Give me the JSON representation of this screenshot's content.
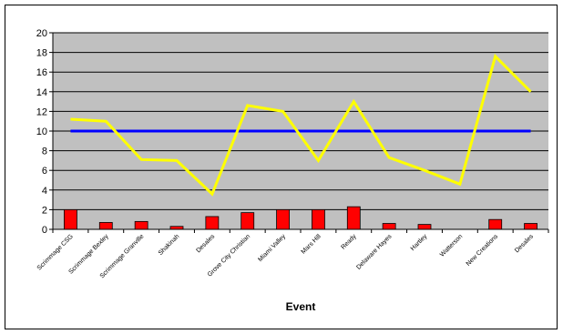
{
  "chart_data": {
    "type": "bar",
    "title": "",
    "xlabel": "Event",
    "ylabel": "",
    "ylim": [
      0,
      20
    ],
    "yticks": [
      0,
      2,
      4,
      6,
      8,
      10,
      12,
      14,
      16,
      18,
      20
    ],
    "grid": true,
    "legend": "none",
    "plot_background": "#c0c0c0",
    "categories": [
      "Scrimmage CSG",
      "Scrimmage Bexley",
      "Scrimmage Granville",
      "Shakinah",
      "Desales",
      "Grove City Christian",
      "Miami Valley",
      "Mars Hill",
      "Ready",
      "Delaware Hayes",
      "Hartley",
      "Watterson",
      "New Creations",
      "Desales"
    ],
    "series": [
      {
        "type": "bar",
        "color": "#ff0000",
        "values": [
          2.0,
          0.7,
          0.8,
          0.3,
          1.3,
          1.7,
          2.0,
          2.0,
          2.3,
          0.6,
          0.5,
          0.0,
          1.0,
          0.6
        ]
      },
      {
        "type": "line",
        "color": "#0000ff",
        "values": [
          10,
          10,
          10,
          10,
          10,
          10,
          10,
          10,
          10,
          10,
          10,
          10,
          10,
          10
        ]
      },
      {
        "type": "line",
        "color": "#ffff00",
        "values": [
          11.2,
          11.0,
          7.1,
          7.0,
          3.6,
          12.6,
          12.0,
          7.0,
          13.0,
          7.3,
          6.0,
          4.6,
          17.6,
          14.0
        ]
      }
    ]
  }
}
